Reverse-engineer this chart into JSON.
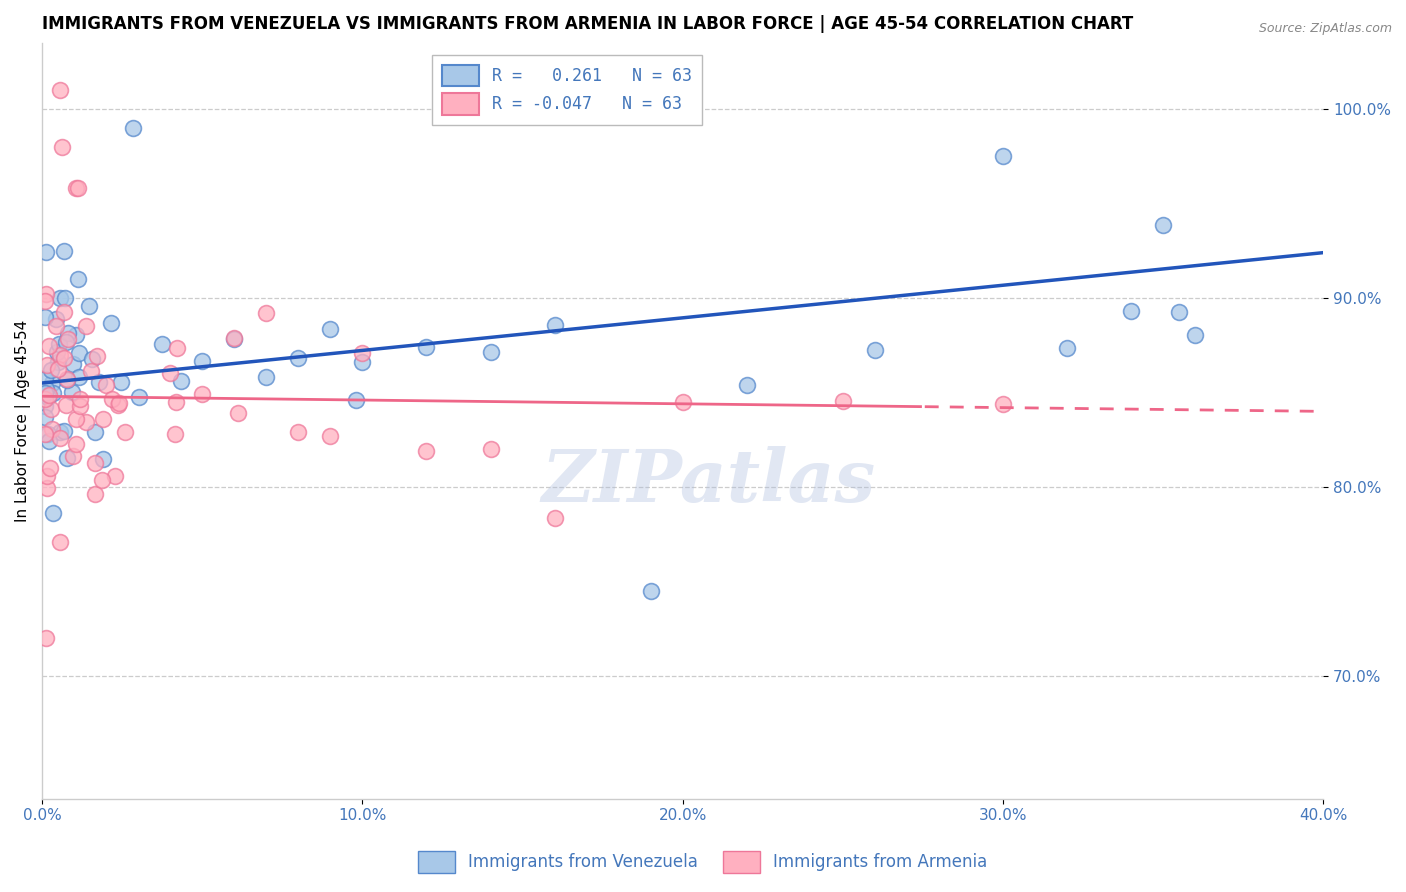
{
  "title": "IMMIGRANTS FROM VENEZUELA VS IMMIGRANTS FROM ARMENIA IN LABOR FORCE | AGE 45-54 CORRELATION CHART",
  "source": "Source: ZipAtlas.com",
  "ylabel": "In Labor Force | Age 45-54",
  "xlim": [
    0.0,
    0.4
  ],
  "ylim": [
    0.635,
    1.035
  ],
  "xticks": [
    0.0,
    0.1,
    0.2,
    0.3,
    0.4
  ],
  "xtick_labels": [
    "0.0%",
    "10.0%",
    "20.0%",
    "30.0%",
    "40.0%"
  ],
  "yticks": [
    0.7,
    0.8,
    0.9,
    1.0
  ],
  "ytick_labels": [
    "70.0%",
    "80.0%",
    "90.0%",
    "100.0%"
  ],
  "r_venezuela": 0.261,
  "n_venezuela": 63,
  "r_armenia": -0.047,
  "n_armenia": 63,
  "color_venezuela": "#A8C8E8",
  "color_armenia": "#FFB0C0",
  "edge_venezuela": "#5588CC",
  "edge_armenia": "#EE7799",
  "trend_color_venezuela": "#2255BB",
  "trend_color_armenia": "#EE6688",
  "background_color": "#ffffff",
  "grid_color": "#cccccc",
  "tick_color": "#4477BB",
  "title_fontsize": 12,
  "axis_label_fontsize": 11,
  "tick_fontsize": 11,
  "legend_fontsize": 12,
  "watermark_text": "ZIPatlas",
  "watermark_color": "#AABBDD",
  "watermark_alpha": 0.35
}
